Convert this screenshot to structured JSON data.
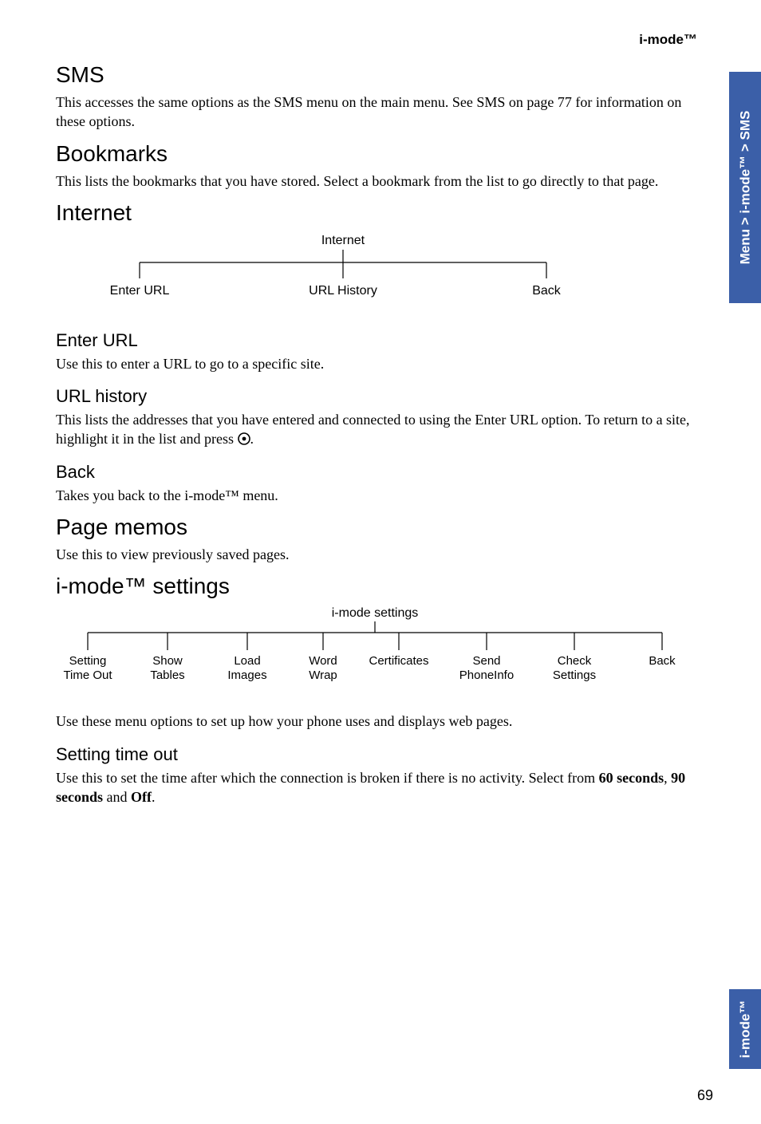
{
  "header": {
    "brand": "i-mode™"
  },
  "side_tab_top": "Menu > i-mode™ > SMS",
  "side_tab_bottom": "i-mode™",
  "page_number": "69",
  "sections": {
    "sms": {
      "title": "SMS",
      "body": "This accesses the same options as the SMS menu on the main menu. See SMS on page 77 for information on these options."
    },
    "bookmarks": {
      "title": "Bookmarks",
      "body": "This lists the bookmarks that you have stored. Select a bookmark from the list to go directly to that page."
    },
    "internet": {
      "title": "Internet",
      "diagram": {
        "root": "Internet",
        "nodes": [
          "Enter URL",
          "URL History",
          "Back"
        ]
      },
      "enter_url": {
        "title": "Enter URL",
        "body": "Use this to enter a URL to go to a specific site."
      },
      "url_history": {
        "title": "URL history",
        "body_pre": "This lists the addresses that you have entered and connected to using the Enter URL option. To return to a site, highlight it in the list and press ",
        "body_post": "."
      },
      "back": {
        "title": "Back",
        "body": "Takes you back to the i-mode™ menu."
      }
    },
    "page_memos": {
      "title": "Page memos",
      "body": "Use this to view previously saved pages."
    },
    "imode_settings": {
      "title": "i-mode™ settings",
      "diagram": {
        "root": "i-mode settings",
        "nodes": [
          [
            "Setting",
            "Time Out"
          ],
          [
            "Show",
            "Tables"
          ],
          [
            "Load",
            "Images"
          ],
          [
            "Word",
            "Wrap"
          ],
          [
            "Certificates",
            ""
          ],
          [
            "Send",
            "PhoneInfo"
          ],
          [
            "Check",
            "Settings"
          ],
          [
            "Back",
            ""
          ]
        ]
      },
      "intro": "Use these menu options to set up how your phone uses and displays web pages.",
      "setting_timeout": {
        "title": "Setting time out",
        "body_pre": "Use this to set the time after which the connection is broken if there is no activity. Select from ",
        "opt1": "60 seconds",
        "sep1": ", ",
        "opt2": "90 seconds",
        "sep2": " and ",
        "opt3": "Off",
        "body_post": "."
      }
    }
  }
}
